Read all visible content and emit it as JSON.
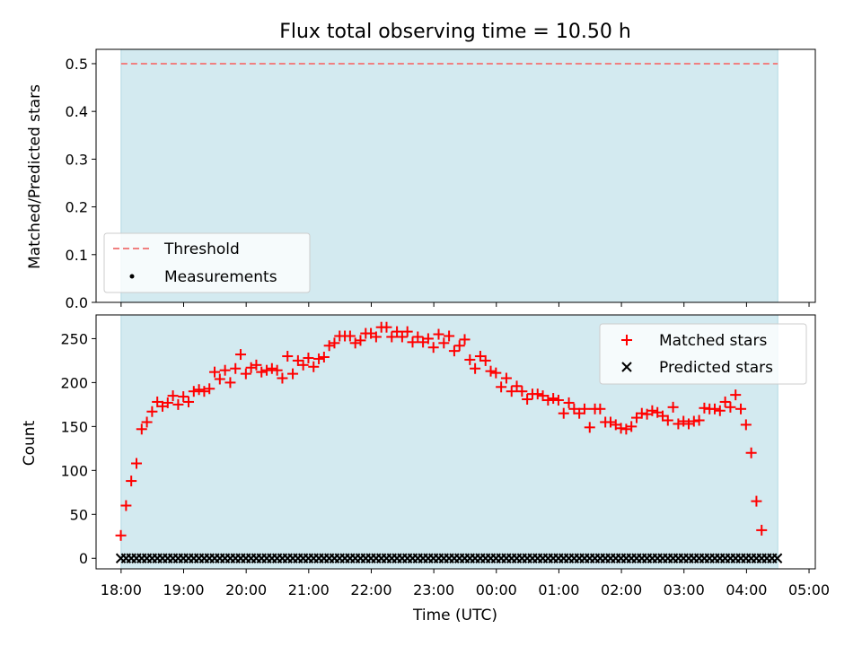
{
  "title": "Flux total observing time = 10.50 h",
  "colors": {
    "shade": "#d3eaf0",
    "shade_edge": "#b2d9e3",
    "threshold": "#f08080",
    "matched": "#ff0000",
    "predicted": "#000000",
    "measurements": "#000000"
  },
  "chart_data": [
    {
      "type": "line",
      "panel": "top",
      "xlabel": "",
      "ylabel": "Matched/Predicted stars",
      "xlim": [
        17.6,
        29.1
      ],
      "ylim": [
        0,
        0.53
      ],
      "yticks": [
        0.0,
        0.1,
        0.2,
        0.3,
        0.4,
        0.5
      ],
      "ytick_labels": [
        "0.0",
        "0.1",
        "0.2",
        "0.3",
        "0.4",
        "0.5"
      ],
      "shaded_span": [
        18.0,
        28.5
      ],
      "threshold": 0.5,
      "measurements": [],
      "legend": {
        "placement": "lower-left",
        "entries": [
          "Threshold",
          "Measurements"
        ]
      }
    },
    {
      "type": "scatter",
      "panel": "bottom",
      "xlabel": "Time (UTC)",
      "ylabel": "Count",
      "xlim": [
        17.6,
        29.1
      ],
      "ylim": [
        -12,
        277
      ],
      "xticks": [
        18,
        19,
        20,
        21,
        22,
        23,
        24,
        25,
        26,
        27,
        28,
        29
      ],
      "xtick_labels": [
        "18:00",
        "19:00",
        "20:00",
        "21:00",
        "22:00",
        "23:00",
        "00:00",
        "01:00",
        "02:00",
        "03:00",
        "04:00",
        "05:00"
      ],
      "yticks": [
        0,
        50,
        100,
        150,
        200,
        250
      ],
      "ytick_labels": [
        "0",
        "50",
        "100",
        "150",
        "200",
        "250"
      ],
      "shaded_span": [
        18.0,
        28.5
      ],
      "x_start": 17.996,
      "x_step": 0.0833,
      "series": [
        {
          "name": "Matched stars",
          "marker": "+",
          "values": [
            26,
            60,
            88,
            108,
            147,
            155,
            167,
            178,
            173,
            177,
            185,
            175,
            184,
            178,
            190,
            192,
            190,
            193,
            212,
            204,
            214,
            200,
            216,
            232,
            210,
            217,
            220,
            212,
            214,
            216,
            214,
            205,
            230,
            210,
            225,
            220,
            228,
            218,
            227,
            229,
            242,
            245,
            253,
            253,
            253,
            245,
            248,
            256,
            256,
            252,
            263,
            263,
            252,
            258,
            252,
            258,
            246,
            252,
            246,
            250,
            240,
            255,
            245,
            253,
            236,
            242,
            249,
            226,
            216,
            230,
            225,
            213,
            211,
            195,
            205,
            190,
            196,
            190,
            181,
            187,
            187,
            185,
            180,
            182,
            180,
            165,
            177,
            170,
            165,
            170,
            149,
            170,
            170,
            155,
            155,
            152,
            148,
            147,
            150,
            160,
            165,
            164,
            168,
            166,
            162,
            157,
            172,
            153,
            156,
            153,
            156,
            157,
            171,
            170,
            170,
            168,
            178,
            172,
            186,
            170,
            152,
            120,
            65,
            32
          ]
        },
        {
          "name": "Predicted stars",
          "marker": "x",
          "values": [
            0,
            0,
            0,
            0,
            0,
            0,
            0,
            0,
            0,
            0,
            0,
            0,
            0,
            0,
            0,
            0,
            0,
            0,
            0,
            0,
            0,
            0,
            0,
            0,
            0,
            0,
            0,
            0,
            0,
            0,
            0,
            0,
            0,
            0,
            0,
            0,
            0,
            0,
            0,
            0,
            0,
            0,
            0,
            0,
            0,
            0,
            0,
            0,
            0,
            0,
            0,
            0,
            0,
            0,
            0,
            0,
            0,
            0,
            0,
            0,
            0,
            0,
            0,
            0,
            0,
            0,
            0,
            0,
            0,
            0,
            0,
            0,
            0,
            0,
            0,
            0,
            0,
            0,
            0,
            0,
            0,
            0,
            0,
            0,
            0,
            0,
            0,
            0,
            0,
            0,
            0,
            0,
            0,
            0,
            0,
            0,
            0,
            0,
            0,
            0,
            0,
            0,
            0,
            0,
            0,
            0,
            0,
            0,
            0,
            0,
            0,
            0,
            0,
            0,
            0,
            0,
            0,
            0,
            0,
            0,
            0,
            0,
            0,
            0,
            0,
            0,
            0
          ]
        }
      ],
      "legend": {
        "placement": "top-right",
        "entries": [
          "Matched stars",
          "Predicted stars"
        ]
      }
    }
  ]
}
